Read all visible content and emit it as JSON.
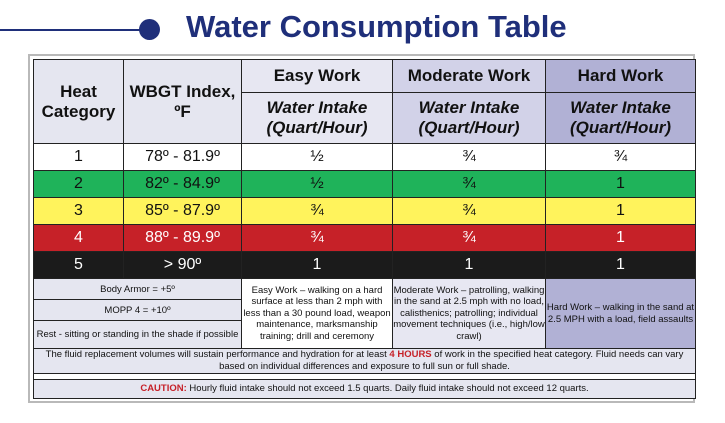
{
  "title": "Water Consumption Table",
  "header": {
    "heat_category": "Heat Category",
    "wbgt": "WBGT Index, ºF",
    "easy": "Easy Work",
    "moderate": "Moderate Work",
    "hard": "Hard Work",
    "water_intake": "Water Intake",
    "quart_hour": "(Quart/Hour)"
  },
  "rows": [
    {
      "cat": "1",
      "wbgt": "78º - 81.9º",
      "easy": "½",
      "moderate": "¾",
      "hard": "¾"
    },
    {
      "cat": "2",
      "wbgt": "82º - 84.9º",
      "easy": "½",
      "moderate": "¾",
      "hard": "1"
    },
    {
      "cat": "3",
      "wbgt": "85º - 87.9º",
      "easy": "¾",
      "moderate": "¾",
      "hard": "1"
    },
    {
      "cat": "4",
      "wbgt": "88º - 89.9º",
      "easy": "¾",
      "moderate": "¾",
      "hard": "1"
    },
    {
      "cat": "5",
      "wbgt": "> 90º",
      "easy": "1",
      "moderate": "1",
      "hard": "1"
    }
  ],
  "notes": {
    "body_armor": "Body Armor = +5º",
    "mopp": "MOPP 4 = +10º",
    "rest": "Rest - sitting or standing in the shade if possible"
  },
  "descriptions": {
    "easy": "Easy Work – walking on a hard surface at less than 2 mph with less than a 30 pound load, weapon maintenance, marksmanship training; drill and ceremony",
    "moderate": "Moderate Work – patrolling, walking in the sand at 2.5 mph with no load, calisthenics; patrolling; individual movement techniques (i.e., high/low crawl)",
    "hard": "Hard Work – walking in the sand at 2.5 MPH with a load, field assaults"
  },
  "footnote": {
    "part1": "The fluid replacement volumes will sustain performance and hydration for at least ",
    "highlight": "4 HOURS",
    "part2": " of work in the specified heat category.  Fluid needs can vary based on individual differences and exposure to full sun or full shade."
  },
  "caution": {
    "label": "CAUTION:",
    "text": " Hourly fluid intake should not exceed 1.5 quarts. Daily fluid intake should not exceed 12 quarts."
  },
  "colors": {
    "title": "#1f2f7a",
    "cat1": "#ffffff",
    "cat2": "#1fb35a",
    "cat3": "#fff35c",
    "cat4": "#c62128",
    "cat5": "#1b1b1b",
    "caution": "#c62128"
  }
}
